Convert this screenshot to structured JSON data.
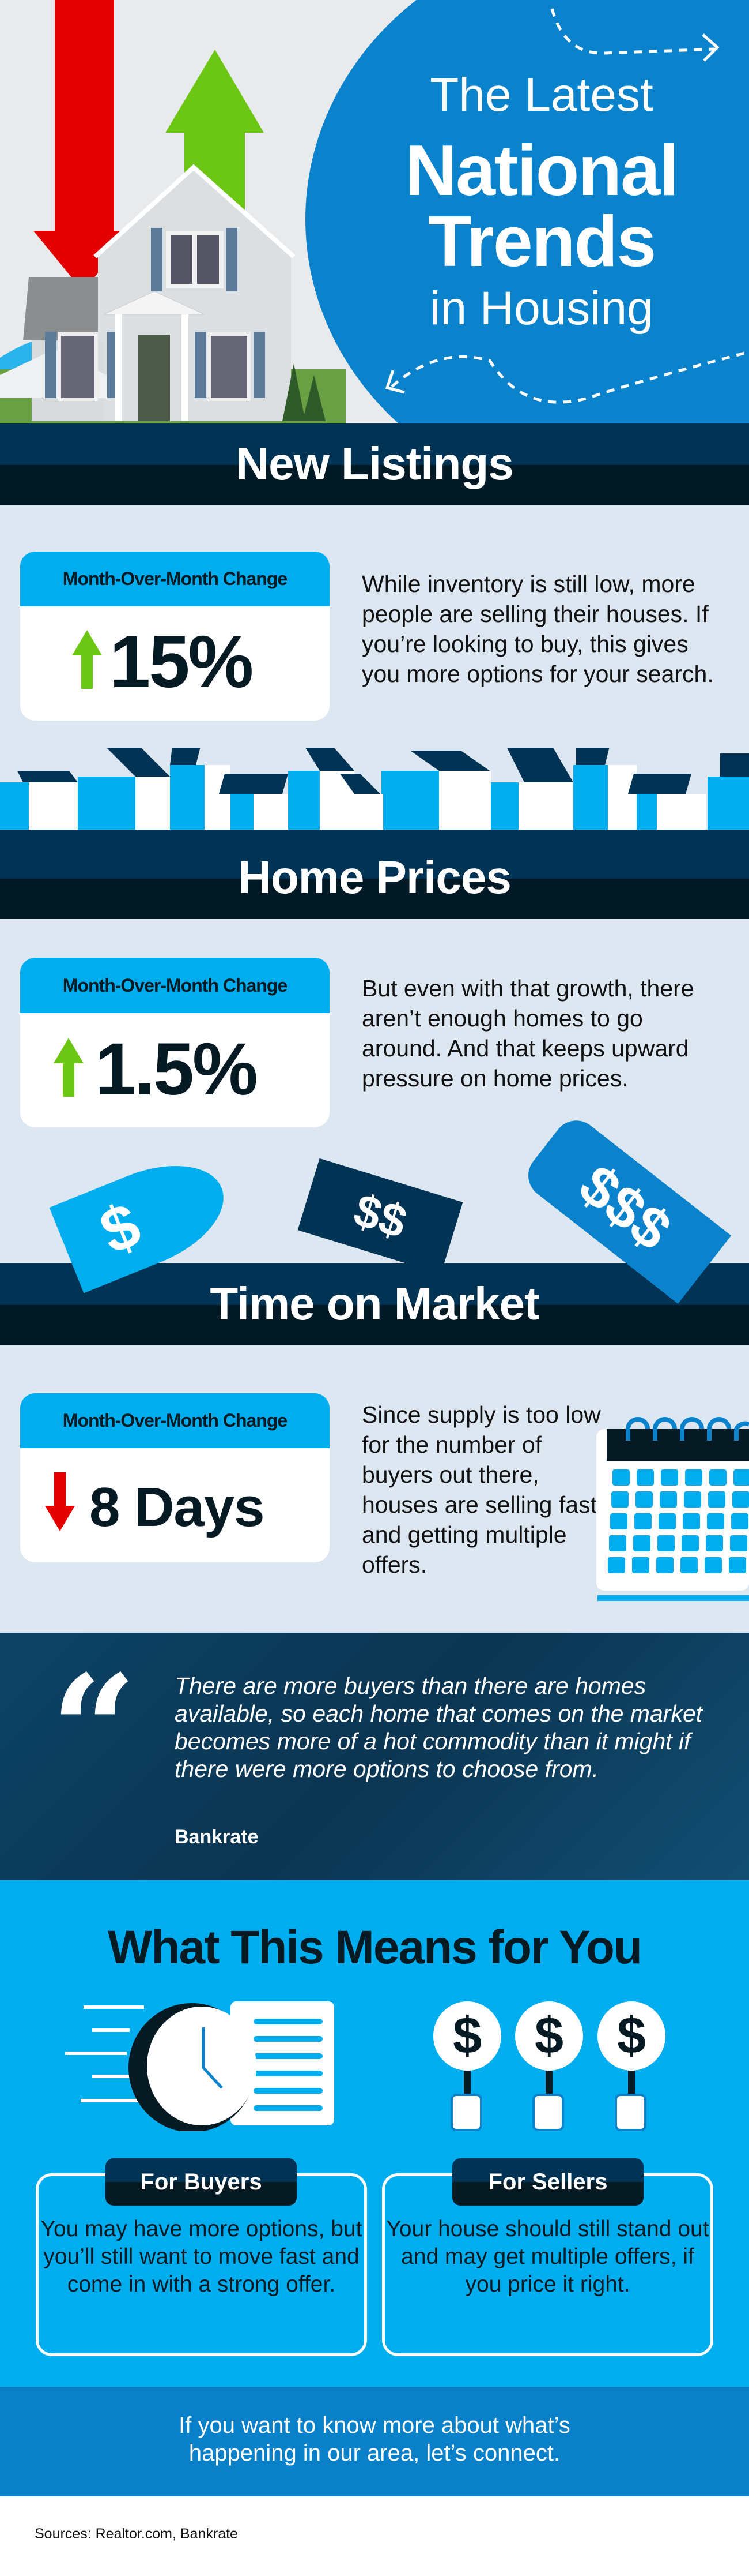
{
  "hero": {
    "title_line1": "The Latest",
    "title_line2": "National",
    "title_line3": "Trends",
    "title_line4": "in Housing"
  },
  "colors": {
    "brand_blue": "#0a82cc",
    "light_blue": "#00aeef",
    "navy": "#003354",
    "dark": "#061a24",
    "up_green": "#6cc614",
    "down_red": "#e30000"
  },
  "sections": [
    {
      "title": "New Listings",
      "card_label": "Month-Over-Month Change",
      "direction": "up",
      "value": "15%",
      "text": "While inventory is still low, more people are selling their houses. If you’re looking to buy, this gives you more options for your search."
    },
    {
      "title": "Home Prices",
      "card_label": "Month-Over-Month Change",
      "direction": "up",
      "value": "1.5%",
      "text": "But even with that growth, there aren’t enough homes to go around. And that keeps upward pressure on home prices."
    },
    {
      "title": "Time on Market",
      "card_label": "Month-Over-Month Change",
      "direction": "down",
      "value": "8 Days",
      "text": "Since supply is too low for the number of buyers out there, houses are selling fast and getting multiple offers."
    }
  ],
  "tags": [
    "$",
    "$$",
    "$$$"
  ],
  "quote": {
    "text": "There are more buyers than there are homes available, so each home that comes on the market becomes more of a hot commodity than it might if there were more options to choose from.",
    "source": "Bankrate"
  },
  "means": {
    "title": "What This Means for You",
    "buyers_label": "For Buyers",
    "buyers_text": "You may have more options, but you’ll still want to move fast and come in with a strong offer.",
    "sellers_label": "For Sellers",
    "sellers_text": "Your house should still stand out and may get multiple offers, if you price it right.",
    "sign_symbol": "$"
  },
  "cta": {
    "text": "If you want to know more about what’s happening in our area, let’s connect."
  },
  "sources": "Sources: Realtor.com, Bankrate"
}
